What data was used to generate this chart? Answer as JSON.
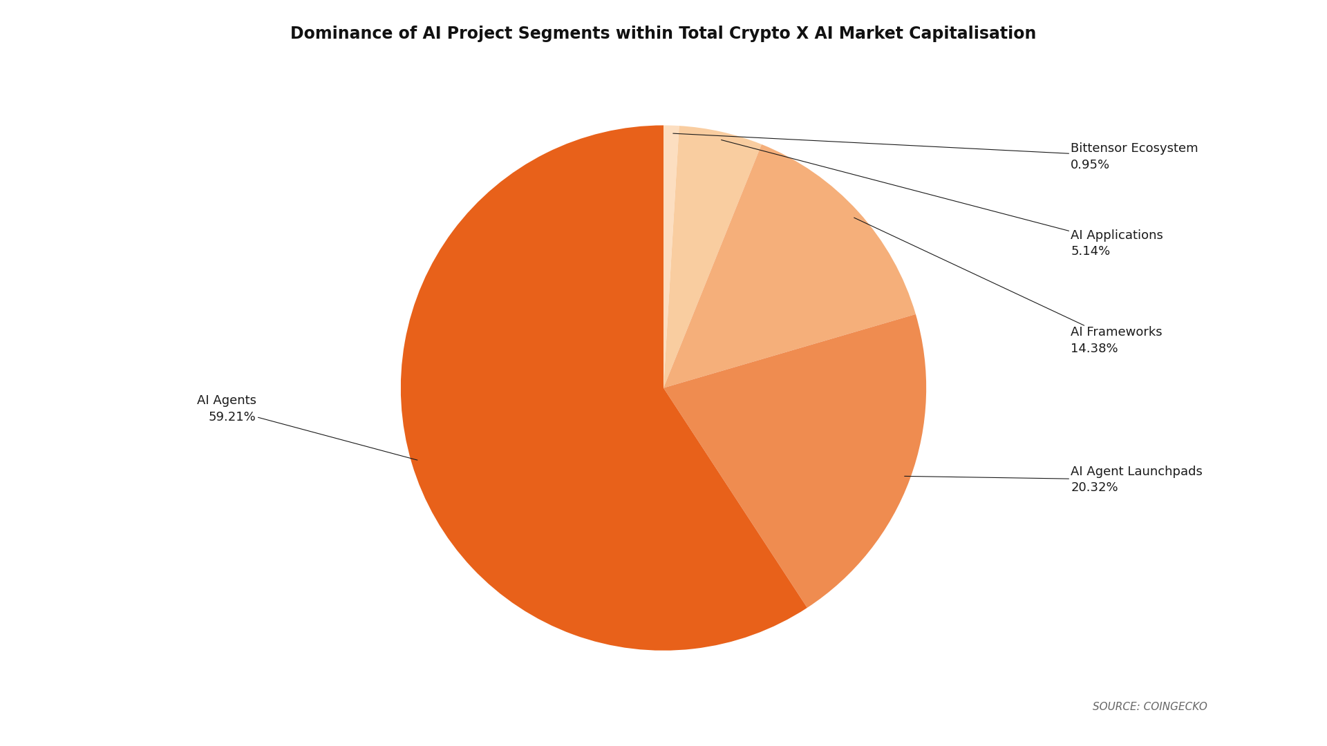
{
  "title": "Dominance of AI Project Segments within Total Crypto X AI Market Capitalisation",
  "segments": [
    {
      "label": "AI Agents",
      "value": 59.21,
      "color": "#E8611A"
    },
    {
      "label": "AI Agent Launchpads",
      "value": 20.32,
      "color": "#EF8C50"
    },
    {
      "label": "AI Frameworks",
      "value": 14.38,
      "color": "#F5AF7A"
    },
    {
      "label": "AI Applications",
      "value": 5.14,
      "color": "#F9CDA0"
    },
    {
      "label": "Bittensor Ecosystem",
      "value": 0.95,
      "color": "#FCDEC0"
    }
  ],
  "source_text": "SOURCE: COINGECKO",
  "background_color": "#FFFFFF",
  "title_fontsize": 17,
  "label_fontsize": 13,
  "source_fontsize": 11
}
